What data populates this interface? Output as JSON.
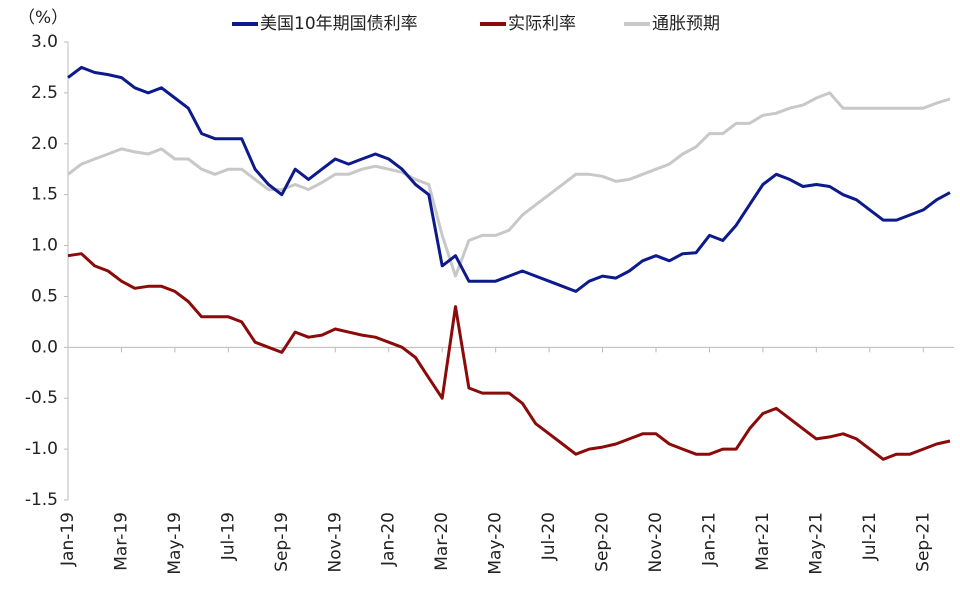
{
  "chart_data": {
    "type": "line",
    "y_unit": "（%）",
    "categories": [
      "Jan-19",
      null,
      null,
      null,
      "Mar-19",
      null,
      null,
      null,
      "May-19",
      null,
      null,
      null,
      "Jul-19",
      null,
      null,
      null,
      "Sep-19",
      null,
      null,
      null,
      "Nov-19",
      null,
      null,
      null,
      "Jan-20",
      null,
      null,
      null,
      "Mar-20",
      null,
      null,
      null,
      "May-20",
      null,
      null,
      null,
      "Jul-20",
      null,
      null,
      null,
      "Sep-20",
      null,
      null,
      null,
      "Nov-20",
      null,
      null,
      null,
      "Jan-21",
      null,
      null,
      null,
      "Mar-21",
      null,
      null,
      null,
      "May-21",
      null,
      null,
      null,
      "Jul-21",
      null,
      null,
      null,
      "Sep-21",
      null,
      null
    ],
    "series": [
      {
        "name": "美国10年期国债利率",
        "color": "#0c1a8c",
        "values": [
          2.65,
          2.75,
          2.7,
          2.68,
          2.65,
          2.55,
          2.5,
          2.55,
          2.45,
          2.35,
          2.1,
          2.05,
          2.05,
          2.05,
          1.75,
          1.6,
          1.5,
          1.75,
          1.65,
          1.75,
          1.85,
          1.8,
          1.85,
          1.9,
          1.85,
          1.75,
          1.6,
          1.5,
          0.8,
          0.9,
          0.65,
          0.65,
          0.65,
          0.7,
          0.75,
          0.7,
          0.65,
          0.6,
          0.55,
          0.65,
          0.7,
          0.68,
          0.75,
          0.85,
          0.9,
          0.85,
          0.92,
          0.93,
          1.1,
          1.05,
          1.2,
          1.4,
          1.6,
          1.7,
          1.65,
          1.58,
          1.6,
          1.58,
          1.5,
          1.45,
          1.35,
          1.25,
          1.25,
          1.3,
          1.35,
          1.45,
          1.52
        ]
      },
      {
        "name": "实际利率",
        "color": "#8b0a0a",
        "values": [
          0.9,
          0.92,
          0.8,
          0.75,
          0.65,
          0.58,
          0.6,
          0.6,
          0.55,
          0.45,
          0.3,
          0.3,
          0.3,
          0.25,
          0.05,
          0.0,
          -0.05,
          0.15,
          0.1,
          0.12,
          0.18,
          0.15,
          0.12,
          0.1,
          0.05,
          0.0,
          -0.1,
          -0.3,
          -0.5,
          0.4,
          -0.4,
          -0.45,
          -0.45,
          -0.45,
          -0.55,
          -0.75,
          -0.85,
          -0.95,
          -1.05,
          -1.0,
          -0.98,
          -0.95,
          -0.9,
          -0.85,
          -0.85,
          -0.95,
          -1.0,
          -1.05,
          -1.05,
          -1.0,
          -1.0,
          -0.8,
          -0.65,
          -0.6,
          -0.7,
          -0.8,
          -0.9,
          -0.88,
          -0.85,
          -0.9,
          -1.0,
          -1.1,
          -1.05,
          -1.05,
          -1.0,
          -0.95,
          -0.92
        ]
      },
      {
        "name": "通胀预期",
        "color": "#c8c8c8",
        "values": [
          1.7,
          1.8,
          1.85,
          1.9,
          1.95,
          1.92,
          1.9,
          1.95,
          1.85,
          1.85,
          1.75,
          1.7,
          1.75,
          1.75,
          1.65,
          1.55,
          1.55,
          1.6,
          1.55,
          1.62,
          1.7,
          1.7,
          1.75,
          1.78,
          1.75,
          1.72,
          1.65,
          1.6,
          1.1,
          0.7,
          1.05,
          1.1,
          1.1,
          1.15,
          1.3,
          1.4,
          1.5,
          1.6,
          1.7,
          1.7,
          1.68,
          1.63,
          1.65,
          1.7,
          1.75,
          1.8,
          1.9,
          1.97,
          2.1,
          2.1,
          2.2,
          2.2,
          2.28,
          2.3,
          2.35,
          2.38,
          2.45,
          2.5,
          2.35,
          2.35,
          2.35,
          2.35,
          2.35,
          2.35,
          2.35,
          2.4,
          2.44
        ]
      }
    ],
    "ylim": [
      -1.5,
      3.0
    ],
    "yticks": [
      {
        "value": -1.5,
        "label": "-1.5"
      },
      {
        "value": -1.0,
        "label": "-1.0"
      },
      {
        "value": -0.5,
        "label": "-0.5"
      },
      {
        "value": 0,
        "label": "0.0"
      },
      {
        "value": 0.5,
        "label": "0.5"
      },
      {
        "value": 1.0,
        "label": "1.0"
      },
      {
        "value": 1.5,
        "label": "1.5"
      },
      {
        "value": 2.0,
        "label": "2.0"
      },
      {
        "value": 2.5,
        "label": "2.5"
      },
      {
        "value": 3.0,
        "label": "3.0"
      }
    ],
    "negative_tick_color": "#e00000",
    "legend": "top"
  }
}
